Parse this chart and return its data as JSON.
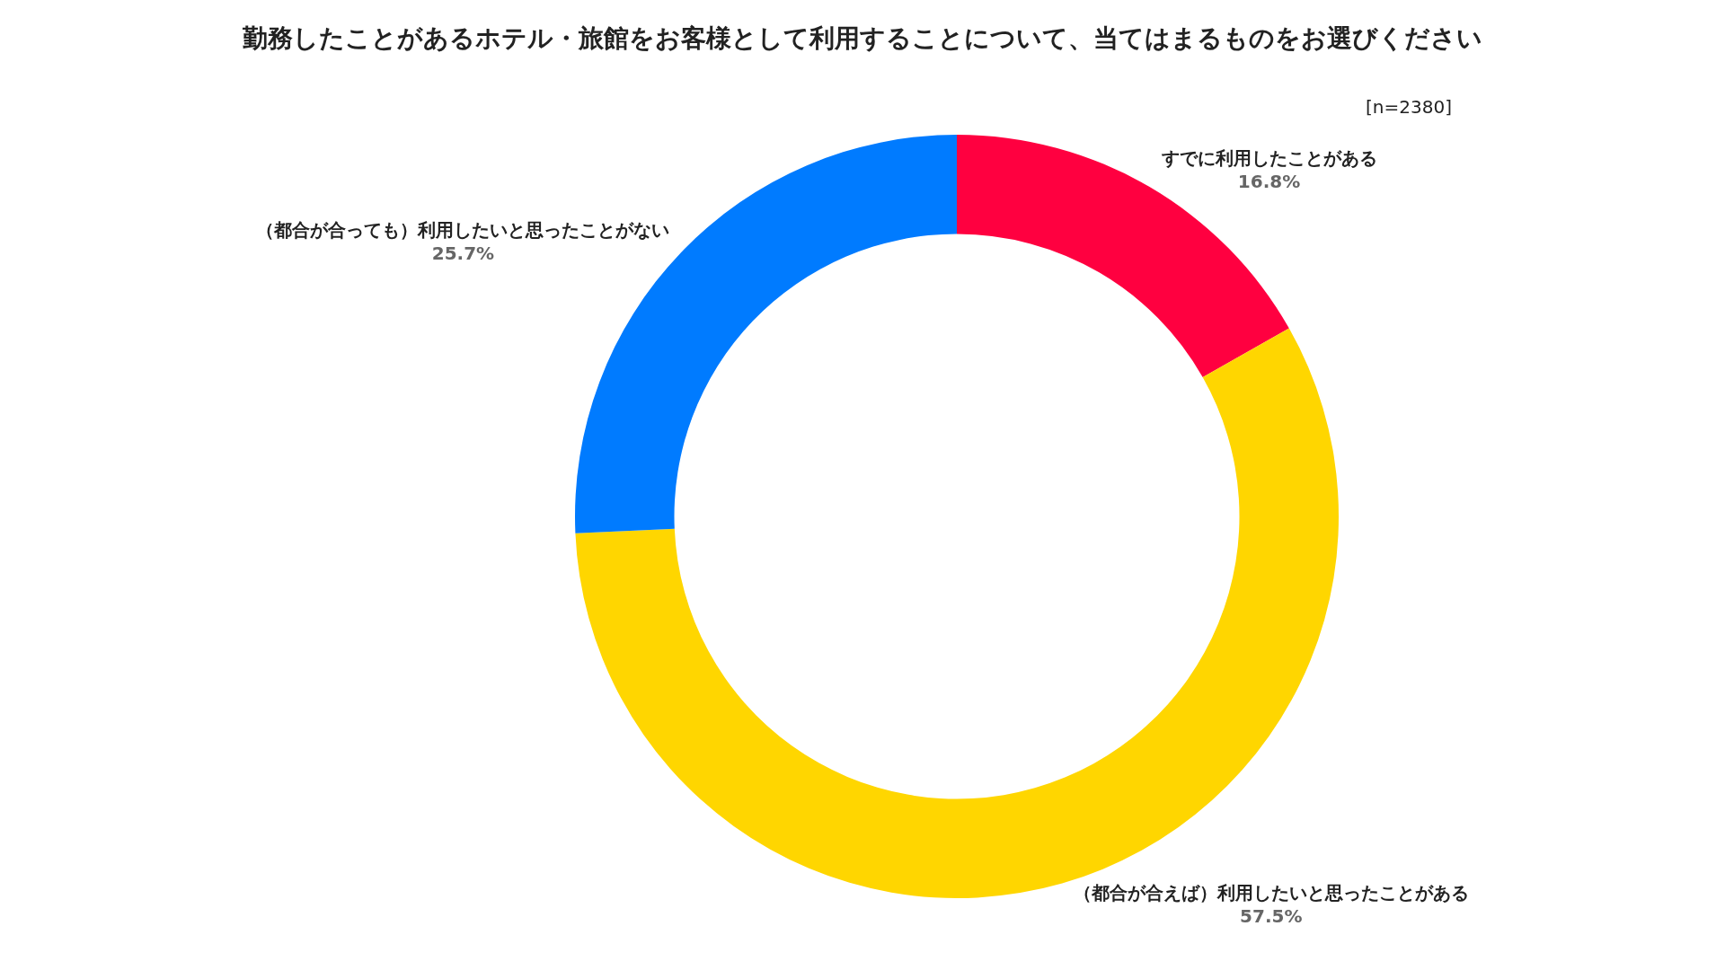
{
  "chart_data": {
    "type": "donut",
    "title": "勤務したことがあるホテル・旅館をお客様として利用することについて、当てはまるものをお選びください",
    "annotations": [
      "[n=2380]"
    ],
    "categories": [
      "すでに利用したことがある",
      "（都合が合えば）利用したいと思ったことがある",
      "（都合が合っても）利用したいと思ったことがない"
    ],
    "values": [
      16.8,
      57.5,
      25.7
    ],
    "value_labels": [
      "16.8%",
      "57.5%",
      "25.7%"
    ],
    "colors": [
      "#ff0040",
      "#ffd600",
      "#007bff"
    ],
    "legend": false
  }
}
